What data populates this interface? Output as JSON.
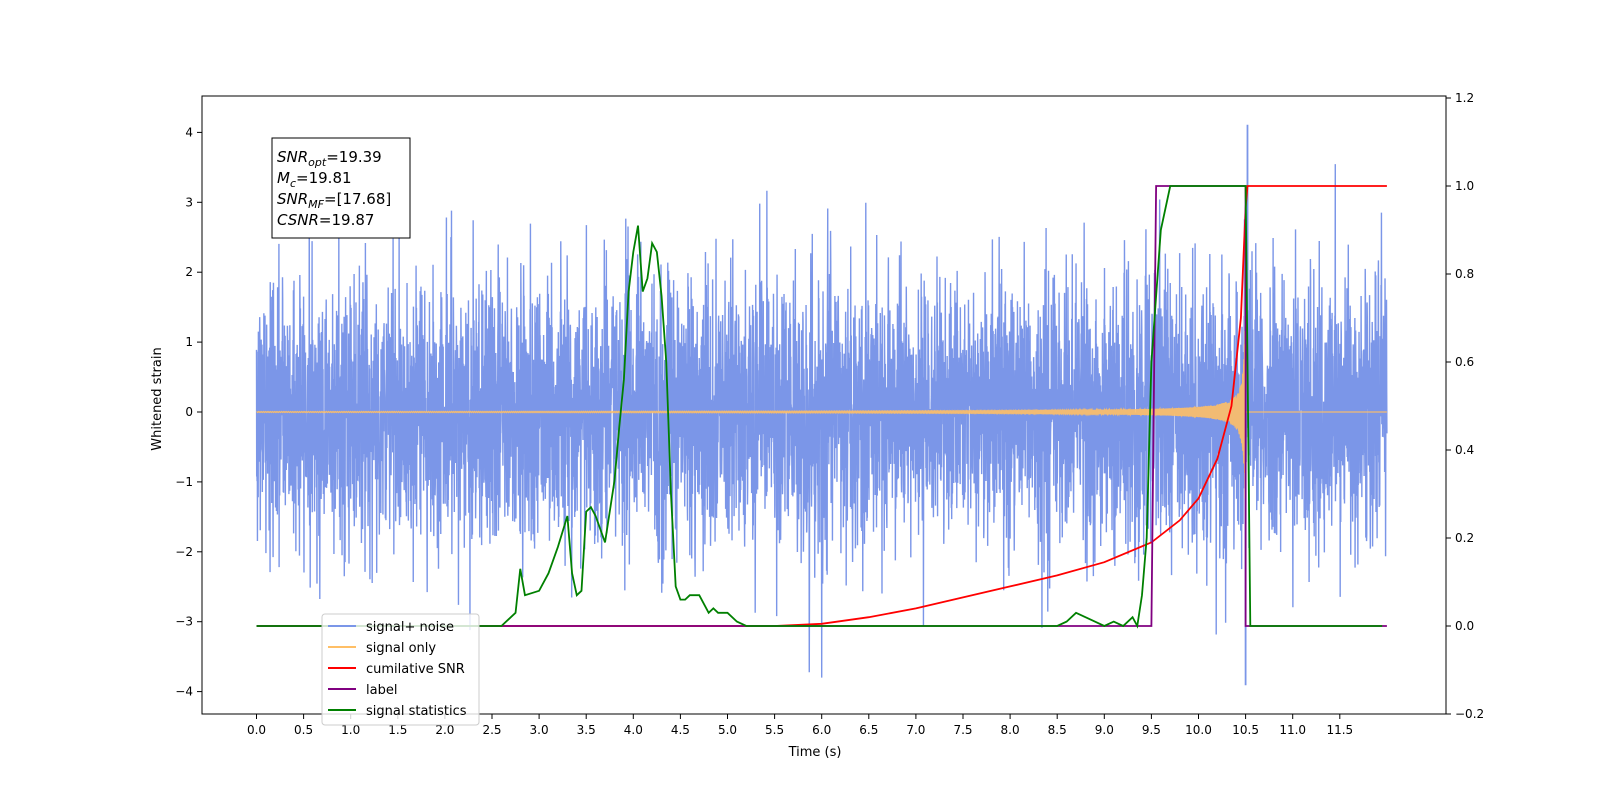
{
  "chart_data": {
    "type": "line",
    "title": "",
    "xlabel": "Time (s)",
    "ylabel": "Whitened strain",
    "xlim": [
      -0.6,
      12.6
    ],
    "ylim": [
      -4.4,
      4.5
    ],
    "y2lim": [
      -0.2,
      1.2
    ],
    "x_ticks": [
      0.0,
      0.5,
      1.0,
      1.5,
      2.0,
      2.5,
      3.0,
      3.5,
      4.0,
      4.5,
      5.0,
      5.5,
      6.0,
      6.5,
      7.0,
      7.5,
      8.0,
      8.5,
      9.0,
      9.5,
      10.0,
      10.5,
      11.0,
      11.5
    ],
    "x_tick_labels": [
      "0.0",
      "0.5",
      "1.0",
      "1.5",
      "2.0",
      "2.5",
      "3.0",
      "3.5",
      "4.0",
      "4.5",
      "5.0",
      "5.5",
      "6.0",
      "6.5",
      "7.0",
      "7.5",
      "8.0",
      "8.5",
      "9.0",
      "9.5",
      "10.0",
      "10.5",
      "11.0",
      "11.5"
    ],
    "y_ticks": [
      -4,
      -3,
      -2,
      -1,
      0,
      1,
      2,
      3,
      4
    ],
    "y_tick_labels": [
      "−4",
      "−3",
      "−2",
      "−1",
      "0",
      "1",
      "2",
      "3",
      "4"
    ],
    "y2_ticks": [
      -0.2,
      0.0,
      0.2,
      0.4,
      0.6,
      0.8,
      1.0,
      1.2
    ],
    "y2_tick_labels": [
      "−0.2",
      "0.0",
      "0.2",
      "0.4",
      "0.6",
      "0.8",
      "1.0",
      "1.2"
    ],
    "grid": false,
    "legend_position": "bottom-left",
    "annotation": {
      "lines": [
        {
          "base": "SNR",
          "sub": "opt",
          "value": "=19.39"
        },
        {
          "base": "M",
          "sub": "c",
          "value": "=19.81"
        },
        {
          "base": "SNR",
          "sub": "MF",
          "value": "=[17.68]"
        },
        {
          "base": "CSNR",
          "sub": "",
          "value": "=19.87"
        }
      ]
    },
    "series": [
      {
        "name": "signal+ noise",
        "axis": "left",
        "color": "#7b96e8",
        "kind": "noise",
        "x_range": [
          0.0,
          12.0
        ],
        "amplitude_sd": 0.95,
        "peak_values": {
          "max": 4.1,
          "min": -3.9
        }
      },
      {
        "name": "signal only",
        "axis": "left",
        "color": "#ffbf66",
        "kind": "chirp",
        "x_range": [
          0.0,
          12.0
        ],
        "merger_time": 10.5,
        "peak_amplitude": 3.6
      },
      {
        "name": "cumilative SNR",
        "axis": "right",
        "color": "#ff0000",
        "x": [
          0.0,
          5.0,
          5.5,
          6.0,
          6.5,
          7.0,
          7.5,
          8.0,
          8.5,
          9.0,
          9.5,
          9.8,
          10.0,
          10.2,
          10.35,
          10.45,
          10.5,
          10.52,
          12.0
        ],
        "values": [
          0.0,
          0.0,
          0.0,
          0.005,
          0.02,
          0.04,
          0.065,
          0.09,
          0.115,
          0.145,
          0.19,
          0.24,
          0.29,
          0.38,
          0.5,
          0.7,
          0.95,
          1.0,
          1.0
        ]
      },
      {
        "name": "label",
        "axis": "right",
        "color": "#800080",
        "x": [
          0.0,
          9.5,
          9.5,
          9.55,
          10.5,
          10.5,
          12.0
        ],
        "values": [
          0.0,
          0.0,
          0.0,
          1.0,
          1.0,
          0.0,
          0.0
        ]
      },
      {
        "name": "signal statistics",
        "axis": "right",
        "color": "#008000",
        "x": [
          0.0,
          2.6,
          2.7,
          2.75,
          2.8,
          2.85,
          3.0,
          3.1,
          3.2,
          3.3,
          3.35,
          3.4,
          3.45,
          3.5,
          3.55,
          3.6,
          3.7,
          3.8,
          3.85,
          3.9,
          3.95,
          4.0,
          4.05,
          4.1,
          4.15,
          4.2,
          4.25,
          4.3,
          4.35,
          4.4,
          4.45,
          4.5,
          4.55,
          4.6,
          4.7,
          4.8,
          4.85,
          4.9,
          5.0,
          5.1,
          5.2,
          5.4,
          6.0,
          8.5,
          8.6,
          8.7,
          8.8,
          8.9,
          9.0,
          9.1,
          9.2,
          9.3,
          9.35,
          9.4,
          9.45,
          9.5,
          9.6,
          9.7,
          10.0,
          10.5,
          10.55,
          10.6,
          11.0,
          11.95
        ],
        "values": [
          0.0,
          0.0,
          0.02,
          0.03,
          0.13,
          0.07,
          0.08,
          0.12,
          0.18,
          0.25,
          0.12,
          0.07,
          0.08,
          0.26,
          0.27,
          0.25,
          0.19,
          0.33,
          0.45,
          0.56,
          0.76,
          0.85,
          0.91,
          0.76,
          0.79,
          0.87,
          0.85,
          0.75,
          0.6,
          0.3,
          0.09,
          0.06,
          0.06,
          0.07,
          0.07,
          0.03,
          0.04,
          0.03,
          0.03,
          0.01,
          0.0,
          0.0,
          0.0,
          0.0,
          0.01,
          0.03,
          0.02,
          0.01,
          0.0,
          0.01,
          0.0,
          0.02,
          0.0,
          0.07,
          0.2,
          0.6,
          0.9,
          1.0,
          1.0,
          1.0,
          0.0,
          0.0,
          0.0,
          0.0
        ]
      }
    ],
    "legend": [
      {
        "label": "signal+ noise",
        "color": "#7b96e8"
      },
      {
        "label": "signal only",
        "color": "#ffbf66"
      },
      {
        "label": "cumilative SNR",
        "color": "#ff0000"
      },
      {
        "label": "label",
        "color": "#800080"
      },
      {
        "label": "signal statistics",
        "color": "#008000"
      }
    ]
  }
}
